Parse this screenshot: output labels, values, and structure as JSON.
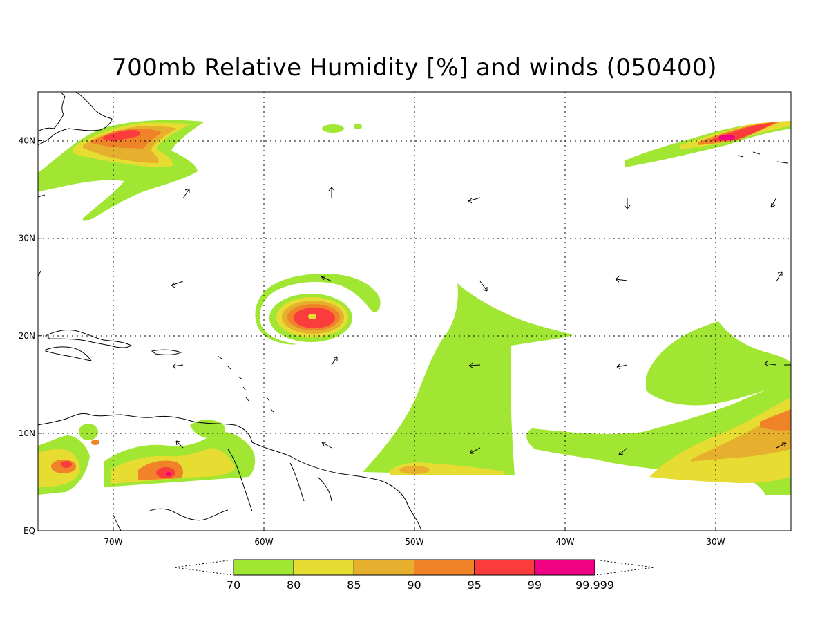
{
  "title": "700mb Relative Humidity [%] and winds (050400)",
  "map": {
    "lon_min": -75,
    "lon_max": -25,
    "lat_min": 0,
    "lat_max": 45,
    "lon_ticks": [
      {
        "lon": -70,
        "label": "70W"
      },
      {
        "lon": -60,
        "label": "60W"
      },
      {
        "lon": -50,
        "label": "50W"
      },
      {
        "lon": -40,
        "label": "40W"
      },
      {
        "lon": -30,
        "label": "30W"
      }
    ],
    "lat_ticks": [
      {
        "lat": 0,
        "label": "EQ"
      },
      {
        "lat": 10,
        "label": "10N"
      },
      {
        "lat": 20,
        "label": "20N"
      },
      {
        "lat": 30,
        "label": "30N"
      },
      {
        "lat": 40,
        "label": "40N"
      }
    ],
    "grid": "dotted"
  },
  "colorbar": {
    "levels": [
      "70",
      "80",
      "85",
      "90",
      "95",
      "99",
      "99.999"
    ],
    "colors": [
      "#a0e632",
      "#e6dc32",
      "#e6af2d",
      "#f08228",
      "#fa3c3c",
      "#f00082"
    ]
  },
  "colors": {
    "c70": "#a0e632",
    "c80": "#e6dc32",
    "c85": "#e6af2d",
    "c90": "#f08228",
    "c95": "#fa3c3c",
    "c99": "#f00082"
  }
}
